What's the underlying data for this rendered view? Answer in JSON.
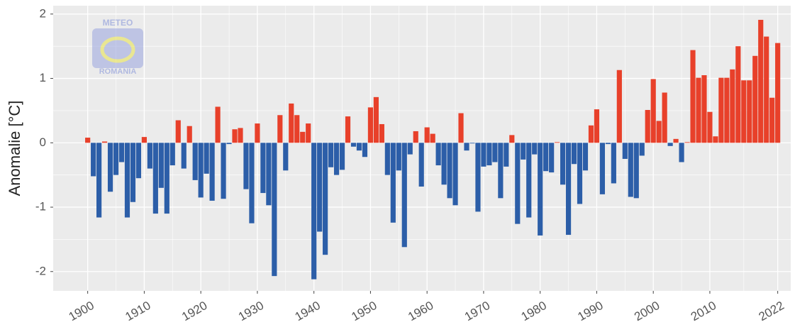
{
  "chart_data": {
    "type": "bar",
    "y_label": "Anomalie [°C]",
    "watermark": [
      "METEO",
      "ROMANIA"
    ],
    "x": [
      1900,
      1901,
      1902,
      1903,
      1904,
      1905,
      1906,
      1907,
      1908,
      1909,
      1910,
      1911,
      1912,
      1913,
      1914,
      1915,
      1916,
      1917,
      1918,
      1919,
      1920,
      1921,
      1922,
      1923,
      1924,
      1925,
      1926,
      1927,
      1928,
      1929,
      1930,
      1931,
      1932,
      1933,
      1934,
      1935,
      1936,
      1937,
      1938,
      1939,
      1940,
      1941,
      1942,
      1943,
      1944,
      1945,
      1946,
      1947,
      1948,
      1949,
      1950,
      1951,
      1952,
      1953,
      1954,
      1955,
      1956,
      1957,
      1958,
      1959,
      1960,
      1961,
      1962,
      1963,
      1964,
      1965,
      1966,
      1967,
      1968,
      1969,
      1970,
      1971,
      1972,
      1973,
      1974,
      1975,
      1976,
      1977,
      1978,
      1979,
      1980,
      1981,
      1982,
      1983,
      1984,
      1985,
      1986,
      1987,
      1988,
      1989,
      1990,
      1991,
      1992,
      1993,
      1994,
      1995,
      1996,
      1997,
      1998,
      1999,
      2000,
      2001,
      2002,
      2003,
      2004,
      2005,
      2006,
      2007,
      2008,
      2009,
      2010,
      2011,
      2012,
      2013,
      2014,
      2015,
      2016,
      2017,
      2018,
      2019,
      2020,
      2021,
      2022
    ],
    "values": [
      0.08,
      -0.52,
      -1.16,
      0.02,
      -0.76,
      -0.5,
      -0.3,
      -1.16,
      -0.92,
      -0.55,
      0.09,
      -0.4,
      -1.1,
      -0.7,
      -1.1,
      -0.35,
      0.35,
      -0.4,
      0.26,
      -0.58,
      -0.85,
      -0.48,
      -0.9,
      0.56,
      -0.87,
      -0.02,
      0.21,
      0.23,
      -0.72,
      -1.25,
      0.3,
      -0.78,
      -0.97,
      -2.07,
      0.43,
      -0.43,
      0.61,
      0.43,
      0.17,
      0.3,
      -2.12,
      -1.38,
      -1.74,
      -0.38,
      -0.5,
      -0.42,
      0.41,
      -0.06,
      -0.12,
      -0.22,
      0.55,
      0.71,
      0.29,
      -0.5,
      -1.24,
      -0.43,
      -1.62,
      -0.18,
      0.18,
      -0.68,
      0.24,
      0.14,
      -0.35,
      -0.65,
      -0.86,
      -0.97,
      0.46,
      -0.12,
      -0.01,
      -1.07,
      -0.37,
      -0.35,
      -0.3,
      -0.86,
      -0.37,
      0.12,
      -1.26,
      -0.26,
      -1.16,
      -0.18,
      -1.44,
      -0.44,
      -0.46,
      0.01,
      -0.65,
      -1.43,
      -0.33,
      -0.95,
      -0.43,
      0.27,
      0.52,
      -0.8,
      -0.02,
      -0.63,
      1.13,
      -0.25,
      -0.84,
      -0.86,
      -0.2,
      0.51,
      0.99,
      0.34,
      0.78,
      -0.05,
      0.06,
      -0.3,
      0.01,
      1.44,
      1.01,
      1.05,
      0.48,
      0.1,
      1.01,
      1.01,
      1.14,
      1.5,
      0.97,
      0.97,
      1.35,
      1.91,
      1.65,
      0.7,
      1.55
    ],
    "colors": {
      "positive": "#e8402a",
      "negative": "#2c5ea8"
    },
    "xlim": [
      1893.9,
      2024.3
    ],
    "xticks": [
      1900,
      1910,
      1920,
      1930,
      1940,
      1950,
      1960,
      1970,
      1980,
      1990,
      2000,
      2010,
      2022
    ],
    "ylim": [
      -2.3,
      2.13
    ],
    "yticks": [
      -2,
      -1,
      0,
      1,
      2
    ],
    "grid": true
  }
}
